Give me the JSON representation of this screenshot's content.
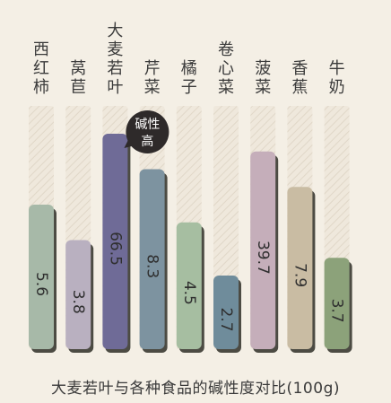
{
  "chart_data": {
    "type": "bar",
    "categories": [
      "西红柿",
      "莴苣",
      "大麦若叶",
      "芹菜",
      "橘子",
      "卷心菜",
      "菠菜",
      "香蕉",
      "牛奶"
    ],
    "values": [
      5.6,
      3.8,
      66.5,
      8.3,
      4.5,
      2.7,
      39.7,
      7.9,
      3.7
    ],
    "value_labels": [
      "5.6",
      "3.8",
      "66.5",
      "8.3",
      "4.5",
      "2.7",
      "39.7",
      "7.9",
      "3.7"
    ],
    "bar_colors": [
      "#a7b9a8",
      "#b9b0c0",
      "#6f6b97",
      "#7d93a0",
      "#a6bea1",
      "#6f8c9b",
      "#c5aeba",
      "#c9bca3",
      "#8ca27a"
    ],
    "shadow_color": "#3d3d35",
    "callout": {
      "category": "大麦若叶",
      "text_line1": "碱性",
      "text_line2": "高",
      "color": "#2e2a2a"
    },
    "title": "大麦若叶与各种食品的碱性度对比(100g)"
  }
}
